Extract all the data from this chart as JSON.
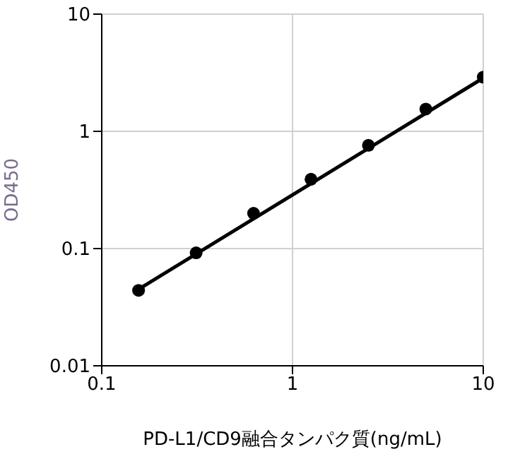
{
  "chart_data": {
    "type": "scatter",
    "xlabel": "PD-L1/CD9融合タンパク質(ng/mL)",
    "ylabel": "OD450",
    "log": "xy",
    "grid": true,
    "legend": false,
    "xlim": [
      0.1,
      10
    ],
    "xticks": [
      0.1,
      1,
      10
    ],
    "ylim": [
      0.01,
      10
    ],
    "yticks": [
      0.01,
      0.1,
      1,
      10
    ],
    "series": [
      {
        "color": "#000000",
        "marker": "circle",
        "x": [
          0.156,
          0.3125,
          0.625,
          1.25,
          2.5,
          5,
          10
        ],
        "values": [
          0.044,
          0.092,
          0.2,
          0.39,
          0.76,
          1.55,
          2.9
        ]
      },
      {
        "type": "line",
        "color": "#000000",
        "marker": "none",
        "x": [
          0.156,
          10
        ],
        "values": [
          0.045,
          2.85
        ]
      }
    ]
  }
}
